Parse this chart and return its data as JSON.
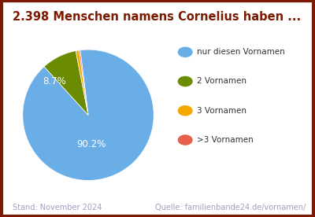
{
  "title": "2.398 Menschen namens Cornelius haben ...",
  "slices": [
    90.2,
    8.7,
    0.8,
    0.3
  ],
  "colors": [
    "#6aaee8",
    "#6b8b00",
    "#f5a800",
    "#e8604c"
  ],
  "labels": [
    "nur diesen Vornamen",
    "2 Vornamen",
    "3 Vornamen",
    ">3 Vornamen"
  ],
  "footer_left": "Stand: November 2024",
  "footer_right": "Quelle: familienbande24.de/vornamen/",
  "title_color": "#7b1a00",
  "footer_color": "#a0a0c0",
  "border_color": "#7b1a00",
  "background_color": "#ffffff"
}
